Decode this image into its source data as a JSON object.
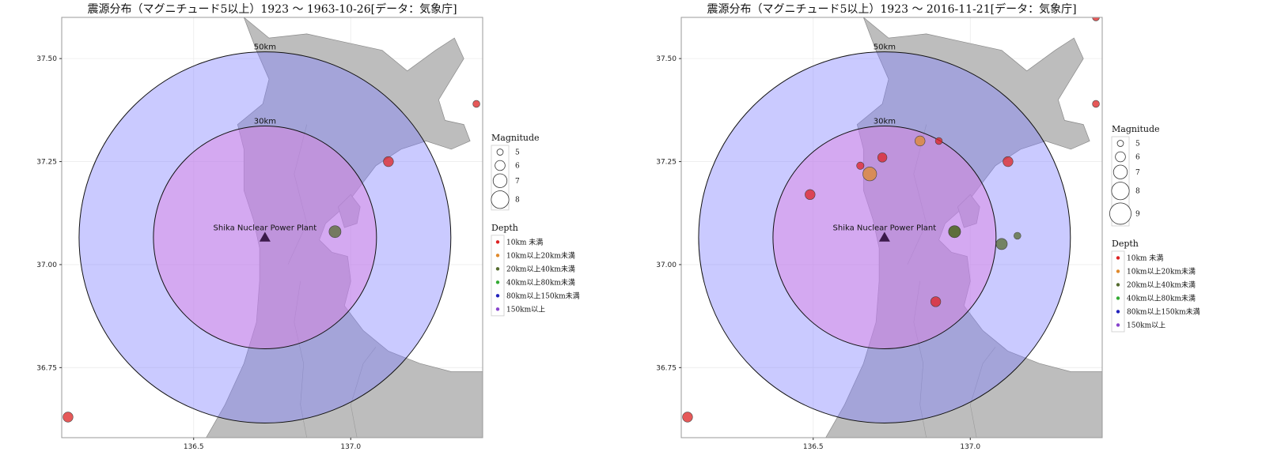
{
  "chart_data": [
    {
      "type": "scatter",
      "title": "震源分布（マグニチュード5以上）1923 ～ 1963-10-26[データ：気象庁]",
      "xlabel": "",
      "ylabel": "",
      "xlim": [
        136.08,
        137.42
      ],
      "ylim": [
        36.58,
        37.6
      ],
      "x_ticks": [
        136.5,
        137.0
      ],
      "x_tick_labels": [
        "136.5",
        "137.0"
      ],
      "y_ticks": [
        36.75,
        37.0,
        37.25,
        37.5
      ],
      "y_tick_labels": [
        "36.75",
        "37.00",
        "37.25",
        "37.50"
      ],
      "grid": true,
      "plant": {
        "label": "Shika Nuclear Power Plant",
        "lon": 136.727,
        "lat": 37.066
      },
      "rings": [
        {
          "label": "50km",
          "radius_km": 50,
          "color": "#8080ff"
        },
        {
          "label": "30km",
          "radius_km": 30,
          "color": "#e080e0"
        }
      ],
      "points": [
        {
          "lon": 136.1,
          "lat": 36.63,
          "magnitude": 6.0,
          "depth_class": 0
        },
        {
          "lon": 137.12,
          "lat": 37.25,
          "magnitude": 6.0,
          "depth_class": 0
        },
        {
          "lon": 136.95,
          "lat": 37.08,
          "magnitude": 6.5,
          "depth_class": 2
        },
        {
          "lon": 137.4,
          "lat": 37.39,
          "magnitude": 5.2,
          "depth_class": 0
        }
      ],
      "legend": {
        "magnitude_title": "Magnitude",
        "magnitude_entries": [
          {
            "label": "5",
            "value": 5
          },
          {
            "label": "6",
            "value": 6
          },
          {
            "label": "7",
            "value": 7
          },
          {
            "label": "8",
            "value": 8
          }
        ],
        "depth_title": "Depth",
        "depth_entries": [
          {
            "label": "10km 未満",
            "color": "#dd2222"
          },
          {
            "label": "10km以上20km未満",
            "color": "#e08a2c"
          },
          {
            "label": "20km以上40km未満",
            "color": "#556b2f"
          },
          {
            "label": "40km以上80km未満",
            "color": "#33aa33"
          },
          {
            "label": "80km以上150km未満",
            "color": "#2222bb"
          },
          {
            "label": "150km以上",
            "color": "#8844cc"
          }
        ]
      }
    },
    {
      "type": "scatter",
      "title": "震源分布（マグニチュード5以上）1923 ～ 2016-11-21[データ：気象庁]",
      "xlabel": "",
      "ylabel": "",
      "xlim": [
        136.08,
        137.42
      ],
      "ylim": [
        36.58,
        37.6
      ],
      "x_ticks": [
        136.5,
        137.0
      ],
      "x_tick_labels": [
        "136.5",
        "137.0"
      ],
      "y_ticks": [
        36.75,
        37.0,
        37.25,
        37.5
      ],
      "y_tick_labels": [
        "36.75",
        "37.00",
        "37.25",
        "37.50"
      ],
      "grid": true,
      "plant": {
        "label": "Shika Nuclear Power Plant",
        "lon": 136.727,
        "lat": 37.066
      },
      "rings": [
        {
          "label": "50km",
          "radius_km": 50,
          "color": "#8080ff"
        },
        {
          "label": "30km",
          "radius_km": 30,
          "color": "#e080e0"
        }
      ],
      "points": [
        {
          "lon": 136.1,
          "lat": 36.63,
          "magnitude": 6.0,
          "depth_class": 0
        },
        {
          "lon": 137.12,
          "lat": 37.25,
          "magnitude": 6.0,
          "depth_class": 0
        },
        {
          "lon": 136.95,
          "lat": 37.08,
          "magnitude": 6.5,
          "depth_class": 2
        },
        {
          "lon": 137.4,
          "lat": 37.39,
          "magnitude": 5.2,
          "depth_class": 0
        },
        {
          "lon": 137.4,
          "lat": 37.6,
          "magnitude": 5.2,
          "depth_class": 0
        },
        {
          "lon": 136.49,
          "lat": 37.17,
          "magnitude": 6.0,
          "depth_class": 0
        },
        {
          "lon": 136.65,
          "lat": 37.24,
          "magnitude": 5.3,
          "depth_class": 0
        },
        {
          "lon": 136.68,
          "lat": 37.22,
          "magnitude": 7.0,
          "depth_class": 1
        },
        {
          "lon": 136.72,
          "lat": 37.26,
          "magnitude": 5.8,
          "depth_class": 0
        },
        {
          "lon": 136.84,
          "lat": 37.3,
          "magnitude": 6.0,
          "depth_class": 1
        },
        {
          "lon": 136.9,
          "lat": 37.3,
          "magnitude": 5.2,
          "depth_class": 0
        },
        {
          "lon": 136.95,
          "lat": 37.08,
          "magnitude": 6.5,
          "depth_class": 2
        },
        {
          "lon": 137.1,
          "lat": 37.05,
          "magnitude": 6.3,
          "depth_class": 2
        },
        {
          "lon": 137.15,
          "lat": 37.07,
          "magnitude": 5.2,
          "depth_class": 2
        },
        {
          "lon": 136.89,
          "lat": 36.91,
          "magnitude": 6.0,
          "depth_class": 0
        }
      ],
      "legend": {
        "magnitude_title": "Magnitude",
        "magnitude_entries": [
          {
            "label": "5",
            "value": 5
          },
          {
            "label": "6",
            "value": 6
          },
          {
            "label": "7",
            "value": 7
          },
          {
            "label": "8",
            "value": 8
          },
          {
            "label": "9",
            "value": 9
          }
        ],
        "depth_title": "Depth",
        "depth_entries": [
          {
            "label": "10km 未満",
            "color": "#dd2222"
          },
          {
            "label": "10km以上20km未満",
            "color": "#e08a2c"
          },
          {
            "label": "20km以上40km未満",
            "color": "#556b2f"
          },
          {
            "label": "40km以上80km未満",
            "color": "#33aa33"
          },
          {
            "label": "80km以上150km未満",
            "color": "#2222bb"
          },
          {
            "label": "150km以上",
            "color": "#8844cc"
          }
        ]
      }
    }
  ]
}
